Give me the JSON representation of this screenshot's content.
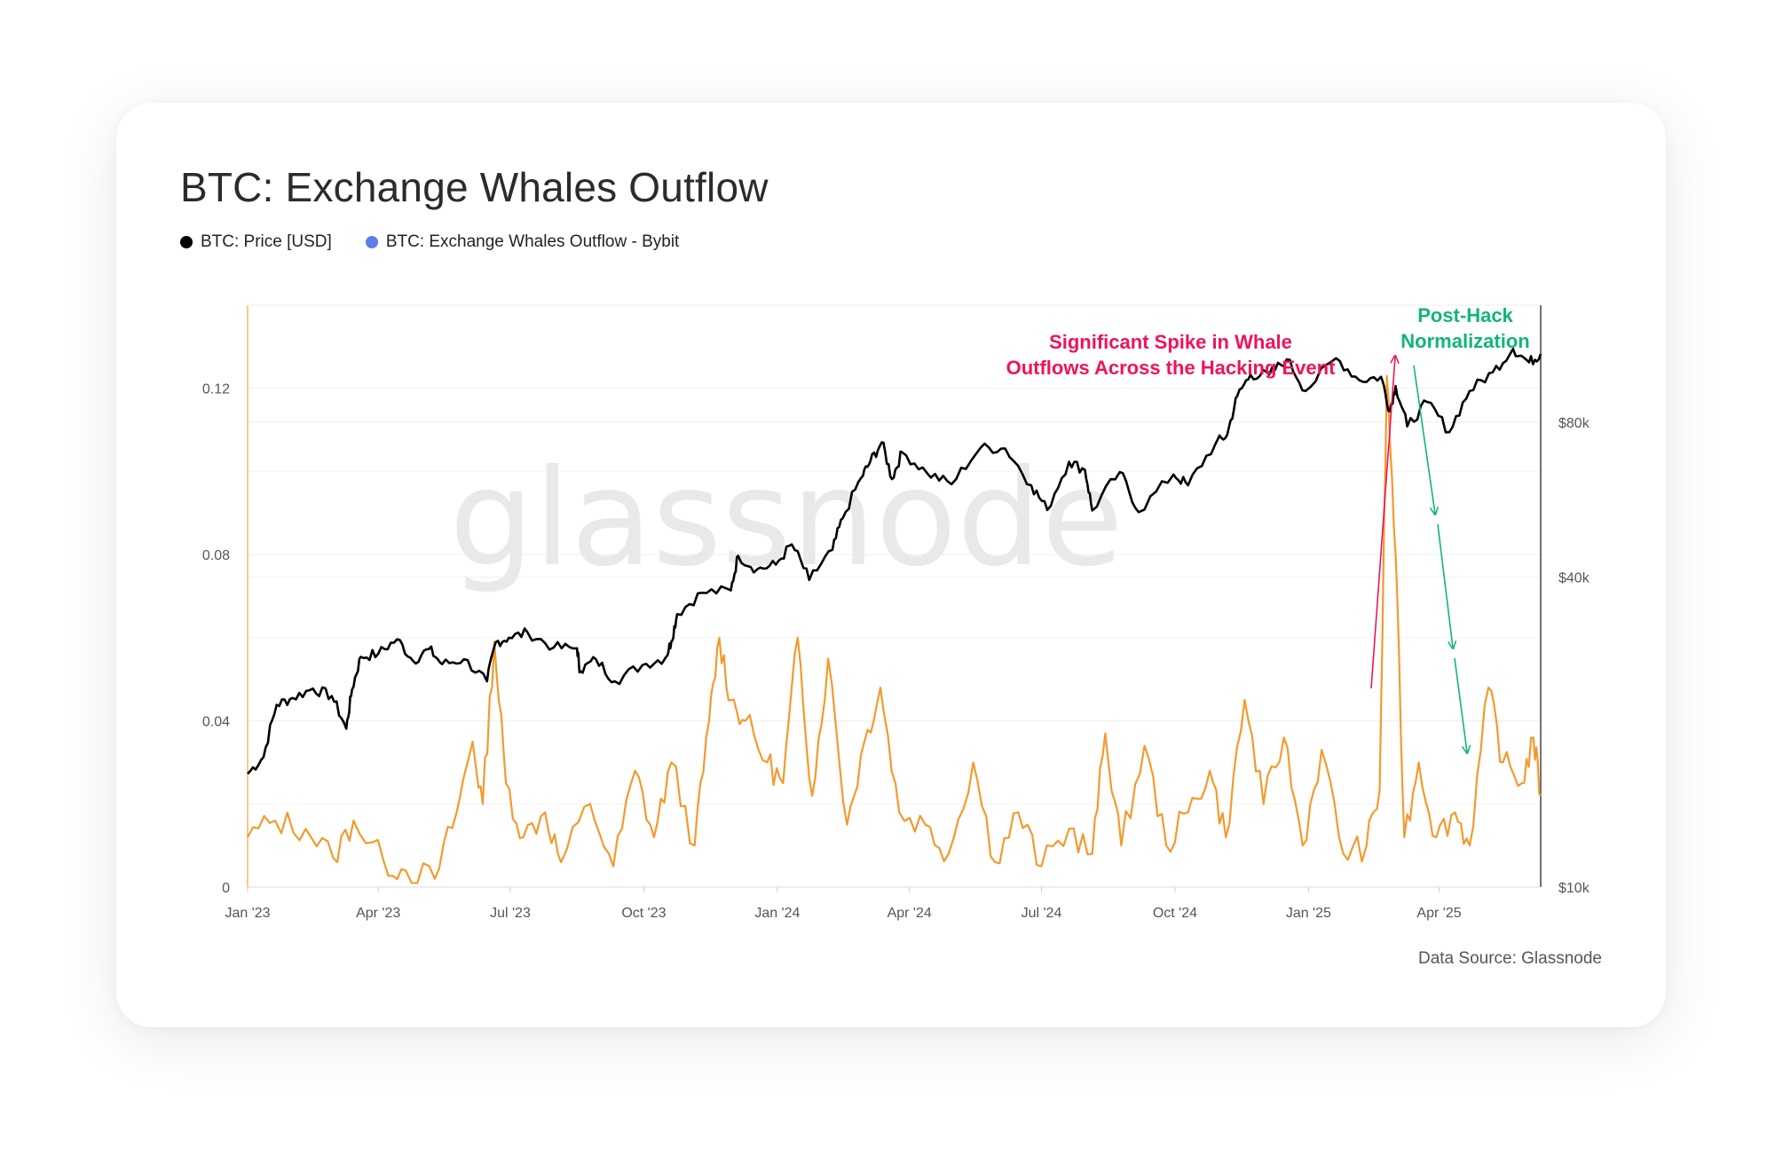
{
  "title": "BTC: Exchange Whales Outflow",
  "legend": [
    {
      "label": "BTC: Price [USD]",
      "color": "#000000"
    },
    {
      "label": "BTC: Exchange Whales Outflow - Bybit",
      "color": "#5b7fe6"
    }
  ],
  "watermark": "glassnode",
  "source": "Data Source: Glassnode",
  "annotations": {
    "spike": {
      "line1": "Significant Spike in Whale",
      "line2": "Outflows Across the Hacking Event",
      "color": "#f0125e"
    },
    "normal": {
      "line1": "Post-Hack",
      "line2": "Normalization",
      "color": "#10b57a"
    }
  },
  "chart_data": {
    "type": "line",
    "x_ticks": [
      "Jan '23",
      "Apr '23",
      "Jul '23",
      "Oct '23",
      "Jan '24",
      "Apr '24",
      "Jul '24",
      "Oct '24",
      "Jan '25",
      "Apr '25"
    ],
    "y_left_ticks": [
      "0",
      "0.04",
      "0.08",
      "0.12"
    ],
    "y_left_range": [
      0,
      0.14
    ],
    "y_right_ticks": [
      "$10k",
      "$40k",
      "$80k"
    ],
    "y_right_scale": "log",
    "x_range": [
      "2023-01-01",
      "2025-06-10"
    ],
    "series": [
      {
        "name": "BTC: Price [USD]",
        "color": "#000000",
        "axis": "right",
        "points": [
          [
            "2023-01-01",
            16600
          ],
          [
            "2023-01-12",
            17900
          ],
          [
            "2023-01-21",
            22600
          ],
          [
            "2023-02-01",
            23300
          ],
          [
            "2023-02-15",
            24300
          ],
          [
            "2023-02-28",
            23500
          ],
          [
            "2023-03-10",
            20300
          ],
          [
            "2023-03-14",
            24200
          ],
          [
            "2023-03-20",
            28000
          ],
          [
            "2023-04-01",
            28400
          ],
          [
            "2023-04-14",
            30300
          ],
          [
            "2023-04-25",
            27500
          ],
          [
            "2023-05-06",
            29000
          ],
          [
            "2023-05-15",
            27100
          ],
          [
            "2023-05-30",
            27700
          ],
          [
            "2023-06-15",
            25100
          ],
          [
            "2023-06-21",
            29900
          ],
          [
            "2023-06-30",
            30500
          ],
          [
            "2023-07-13",
            31200
          ],
          [
            "2023-07-31",
            29200
          ],
          [
            "2023-08-16",
            29100
          ],
          [
            "2023-08-18",
            26300
          ],
          [
            "2023-08-29",
            27700
          ],
          [
            "2023-09-11",
            25100
          ],
          [
            "2023-09-30",
            27000
          ],
          [
            "2023-10-16",
            27900
          ],
          [
            "2023-10-20",
            30000
          ],
          [
            "2023-10-24",
            33900
          ],
          [
            "2023-11-10",
            37300
          ],
          [
            "2023-11-30",
            37700
          ],
          [
            "2023-12-05",
            44000
          ],
          [
            "2023-12-18",
            41400
          ],
          [
            "2023-12-31",
            42300
          ],
          [
            "2024-01-11",
            46300
          ],
          [
            "2024-01-23",
            39500
          ],
          [
            "2024-02-08",
            45200
          ],
          [
            "2024-02-15",
            52000
          ],
          [
            "2024-02-28",
            62500
          ],
          [
            "2024-03-05",
            67000
          ],
          [
            "2024-03-13",
            73100
          ],
          [
            "2024-03-20",
            62000
          ],
          [
            "2024-03-27",
            69900
          ],
          [
            "2024-04-13",
            63800
          ],
          [
            "2024-04-30",
            60600
          ],
          [
            "2024-05-20",
            71300
          ],
          [
            "2024-06-06",
            71100
          ],
          [
            "2024-06-24",
            60300
          ],
          [
            "2024-07-05",
            54000
          ],
          [
            "2024-07-20",
            67000
          ],
          [
            "2024-07-31",
            64600
          ],
          [
            "2024-08-05",
            53900
          ],
          [
            "2024-08-24",
            64000
          ],
          [
            "2024-09-06",
            53500
          ],
          [
            "2024-09-30",
            63300
          ],
          [
            "2024-10-10",
            60300
          ],
          [
            "2024-10-29",
            72700
          ],
          [
            "2024-11-06",
            75600
          ],
          [
            "2024-11-13",
            90000
          ],
          [
            "2024-11-22",
            98900
          ],
          [
            "2024-12-05",
            99000
          ],
          [
            "2024-12-17",
            106000
          ],
          [
            "2024-12-30",
            92000
          ],
          [
            "2025-01-20",
            106500
          ],
          [
            "2025-02-05",
            96500
          ],
          [
            "2025-02-20",
            98000
          ],
          [
            "2025-02-26",
            84000
          ],
          [
            "2025-03-02",
            94000
          ],
          [
            "2025-03-10",
            78500
          ],
          [
            "2025-03-24",
            87500
          ],
          [
            "2025-04-08",
            76500
          ],
          [
            "2025-04-22",
            92000
          ],
          [
            "2025-05-08",
            100000
          ],
          [
            "2025-05-22",
            111000
          ],
          [
            "2025-06-02",
            104500
          ],
          [
            "2025-06-10",
            108500
          ]
        ]
      },
      {
        "name": "BTC: Exchange Whales Outflow - Bybit",
        "color": "#f39a2e",
        "axis": "left",
        "points": [
          [
            "2023-01-01",
            0.012
          ],
          [
            "2023-01-20",
            0.016
          ],
          [
            "2023-02-10",
            0.014
          ],
          [
            "2023-03-01",
            0.007
          ],
          [
            "2023-03-15",
            0.016
          ],
          [
            "2023-04-05",
            0.006
          ],
          [
            "2023-04-20",
            0.004
          ],
          [
            "2023-05-10",
            0.002
          ],
          [
            "2023-05-25",
            0.018
          ],
          [
            "2023-06-05",
            0.035
          ],
          [
            "2023-06-12",
            0.02
          ],
          [
            "2023-06-20",
            0.059
          ],
          [
            "2023-06-28",
            0.025
          ],
          [
            "2023-07-10",
            0.012
          ],
          [
            "2023-07-25",
            0.018
          ],
          [
            "2023-08-05",
            0.006
          ],
          [
            "2023-08-25",
            0.02
          ],
          [
            "2023-09-10",
            0.005
          ],
          [
            "2023-09-25",
            0.028
          ],
          [
            "2023-10-08",
            0.012
          ],
          [
            "2023-10-20",
            0.03
          ],
          [
            "2023-11-05",
            0.01
          ],
          [
            "2023-11-15",
            0.04
          ],
          [
            "2023-11-22",
            0.06
          ],
          [
            "2023-11-30",
            0.045
          ],
          [
            "2023-12-10",
            0.04
          ],
          [
            "2023-12-25",
            0.03
          ],
          [
            "2024-01-05",
            0.025
          ],
          [
            "2024-01-15",
            0.06
          ],
          [
            "2024-01-25",
            0.022
          ],
          [
            "2024-02-05",
            0.055
          ],
          [
            "2024-02-18",
            0.015
          ],
          [
            "2024-03-01",
            0.035
          ],
          [
            "2024-03-12",
            0.048
          ],
          [
            "2024-03-25",
            0.018
          ],
          [
            "2024-04-12",
            0.015
          ],
          [
            "2024-04-28",
            0.008
          ],
          [
            "2024-05-15",
            0.03
          ],
          [
            "2024-05-30",
            0.006
          ],
          [
            "2024-06-15",
            0.018
          ],
          [
            "2024-07-01",
            0.005
          ],
          [
            "2024-07-20",
            0.014
          ],
          [
            "2024-08-05",
            0.008
          ],
          [
            "2024-08-14",
            0.037
          ],
          [
            "2024-08-25",
            0.01
          ],
          [
            "2024-09-10",
            0.034
          ],
          [
            "2024-09-25",
            0.01
          ],
          [
            "2024-10-10",
            0.018
          ],
          [
            "2024-10-25",
            0.028
          ],
          [
            "2024-11-05",
            0.012
          ],
          [
            "2024-11-18",
            0.045
          ],
          [
            "2024-12-01",
            0.02
          ],
          [
            "2024-12-15",
            0.036
          ],
          [
            "2024-12-28",
            0.01
          ],
          [
            "2025-01-10",
            0.033
          ],
          [
            "2025-01-25",
            0.008
          ],
          [
            "2025-02-10",
            0.01
          ],
          [
            "2025-02-19",
            0.023
          ],
          [
            "2025-02-24",
            0.123
          ],
          [
            "2025-03-02",
            0.08
          ],
          [
            "2025-03-08",
            0.012
          ],
          [
            "2025-03-18",
            0.03
          ],
          [
            "2025-03-30",
            0.012
          ],
          [
            "2025-04-12",
            0.018
          ],
          [
            "2025-04-22",
            0.01
          ],
          [
            "2025-05-05",
            0.048
          ],
          [
            "2025-05-15",
            0.03
          ],
          [
            "2025-05-28",
            0.025
          ],
          [
            "2025-06-05",
            0.036
          ],
          [
            "2025-06-10",
            0.022
          ]
        ]
      }
    ]
  }
}
